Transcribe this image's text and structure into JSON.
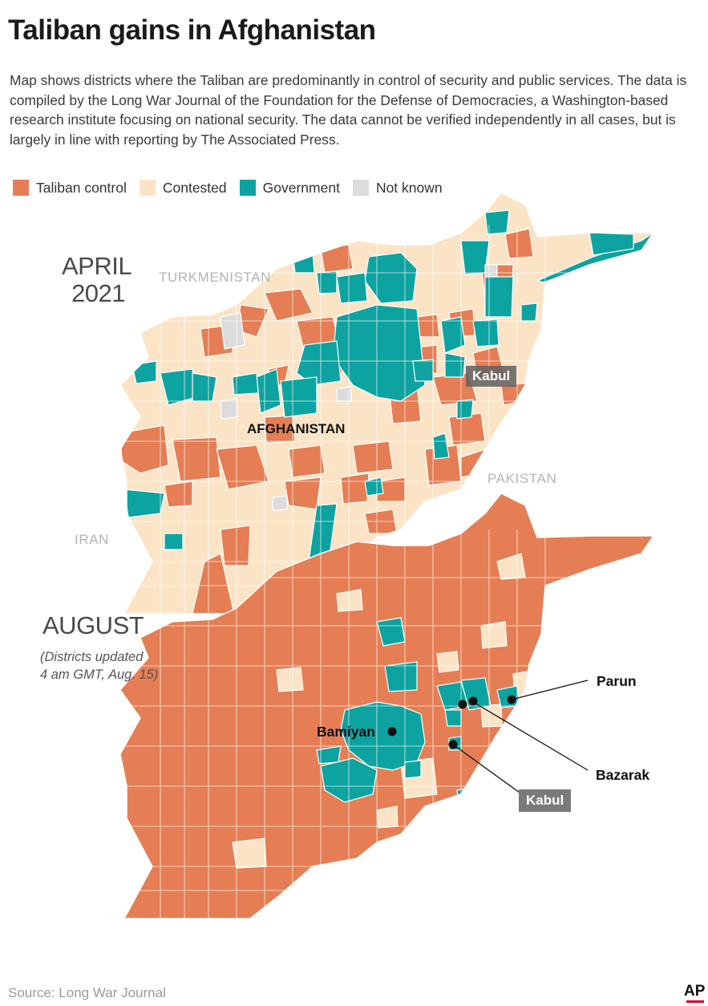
{
  "title": "Taliban gains in Afghanistan",
  "description": "Map shows districts where the Taliban are predominantly in control of security and public services. The data is compiled by the Long War Journal of the Foundation for the Defense of Democracies, a Washington-based research institute focusing on national security. The data cannot be verified independently in all cases, but is largely in line with reporting by The Associated Press.",
  "legend": [
    {
      "label": "Taliban control",
      "color": "#e57e54"
    },
    {
      "label": "Contested",
      "color": "#fbe4c6"
    },
    {
      "label": "Government",
      "color": "#0da3a0"
    },
    {
      "label": "Not known",
      "color": "#dcdcdc"
    }
  ],
  "maps": {
    "april": {
      "heading_line1": "APRIL",
      "heading_line2": "2021",
      "countries": {
        "turkmenistan": "TURKMENISTAN",
        "pakistan": "PAKISTAN",
        "iran": "IRAN"
      },
      "country_label": "AFGHANISTAN",
      "city": "Kabul"
    },
    "august": {
      "heading": "AUGUST",
      "note_line1": "(Districts updated",
      "note_line2": "4 am GMT, Aug. 15)",
      "places": {
        "parun": "Parun",
        "bamiyan": "Bamiyan",
        "bazarak": "Bazarak"
      },
      "city": "Kabul"
    }
  },
  "source": "Source: Long War Journal",
  "credit": "AP"
}
